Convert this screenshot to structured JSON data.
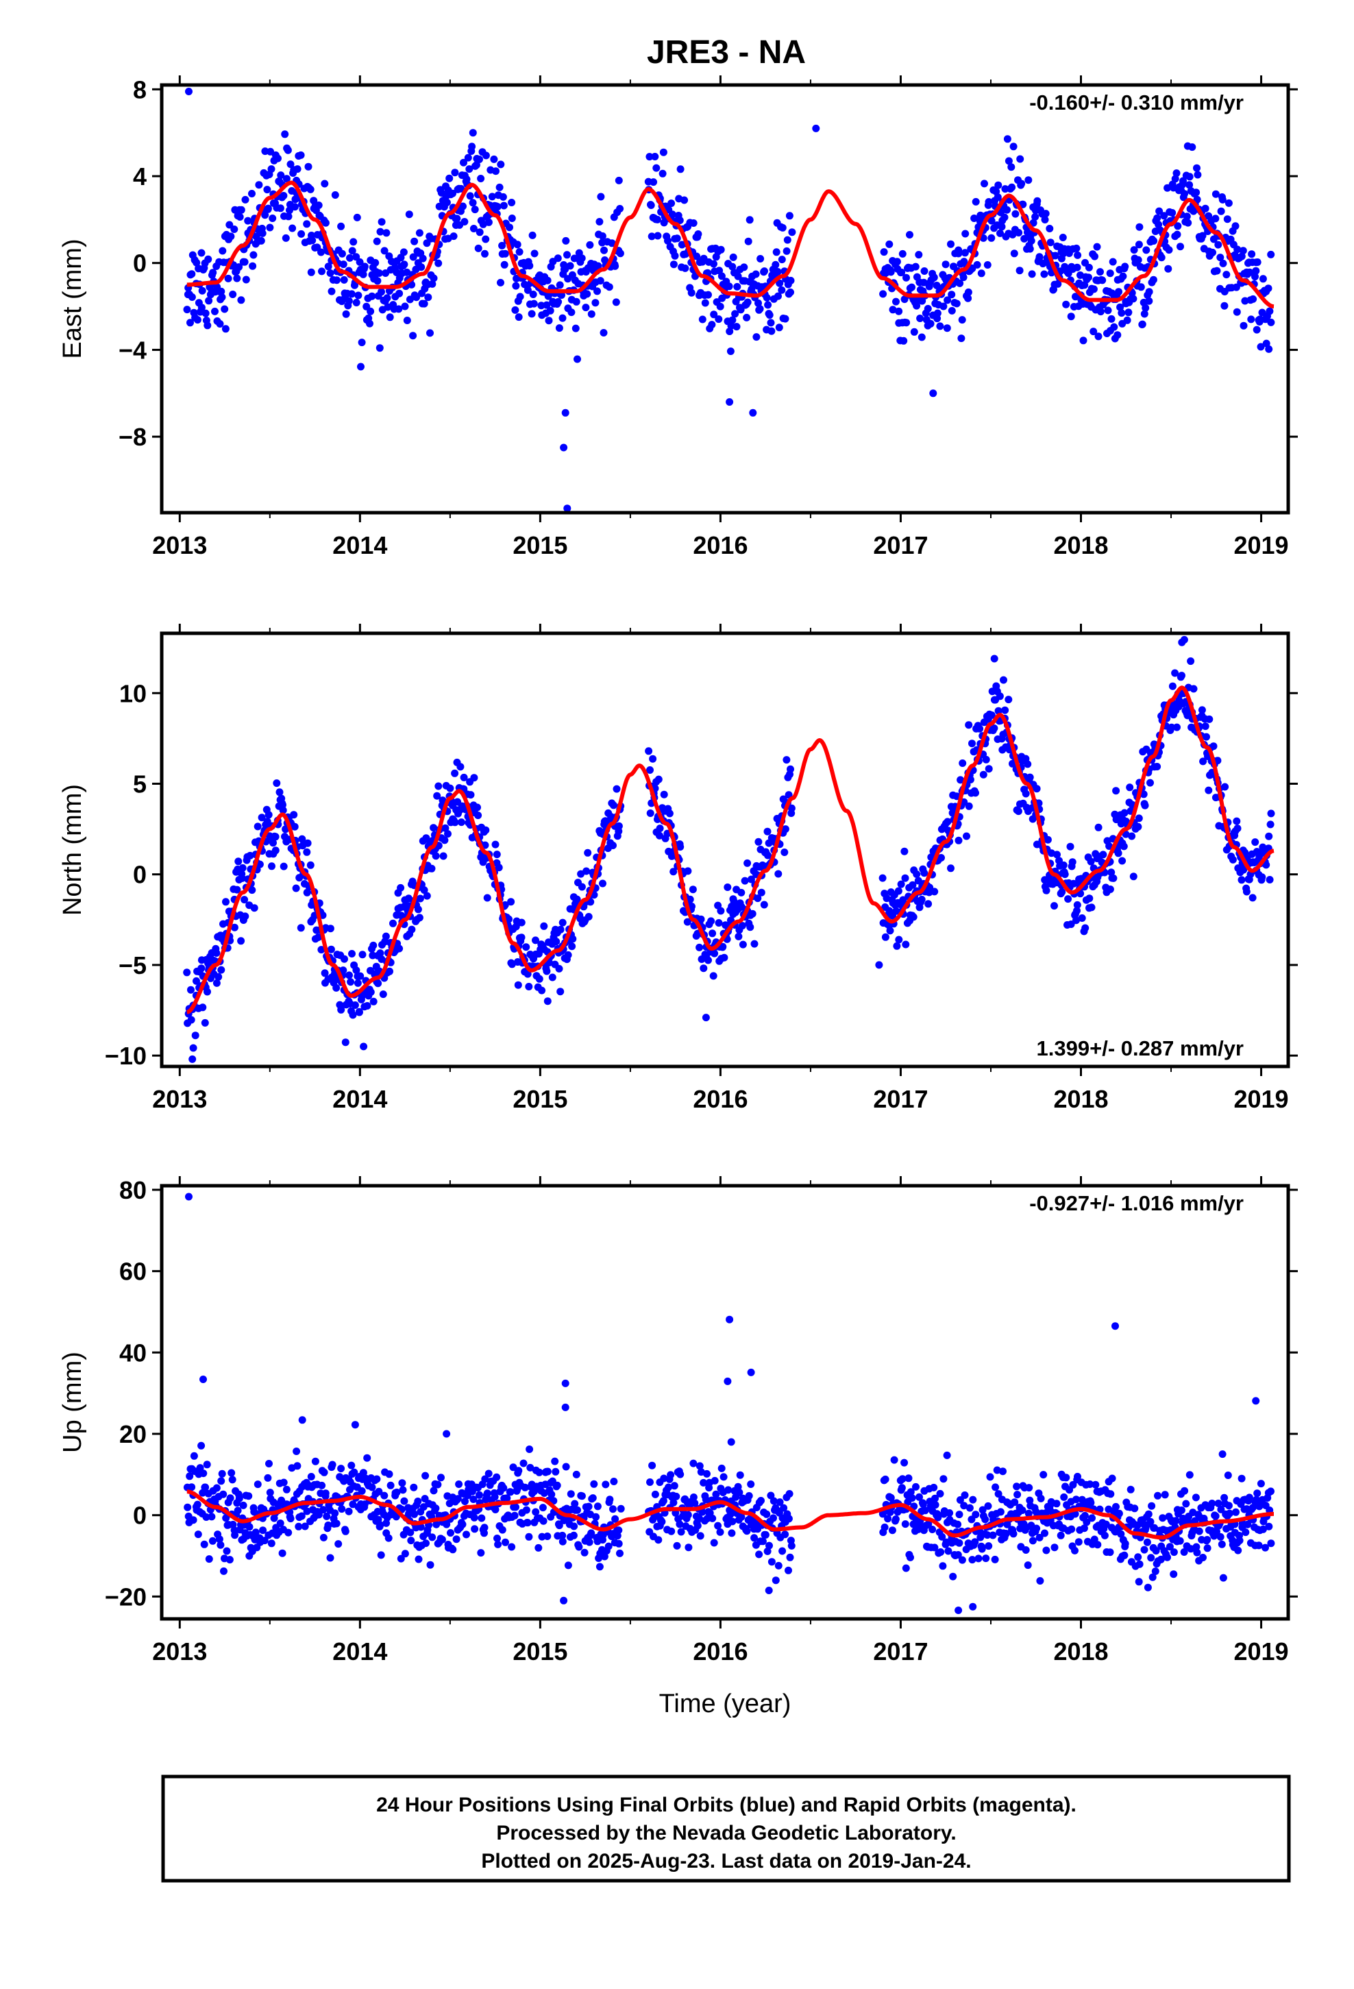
{
  "figure_title": "JRE3 - NA",
  "caption_lines": [
    "24 Hour Positions Using Final Orbits (blue) and Rapid Orbits (magenta).",
    "Processed by the Nevada Geodetic Laboratory.",
    "Plotted on 2025-Aug-23. Last data on 2019-Jan-24."
  ],
  "colors": {
    "points": "#0000ff",
    "fit": "#ff0000",
    "frame": "#000000"
  },
  "chart_data": [
    {
      "type": "scatter",
      "ylabel": "East (mm)",
      "xlabel": "",
      "xlim": [
        2012.9,
        2019.15
      ],
      "ylim": [
        -11.5,
        8.2
      ],
      "xticks": [
        2013,
        2014,
        2015,
        2016,
        2017,
        2018,
        2019
      ],
      "xtick_labels": [
        "2013",
        "2014",
        "2015",
        "2016",
        "2017",
        "2018",
        "2019"
      ],
      "yticks": [
        -8,
        -4,
        0,
        4,
        8
      ],
      "ytick_labels": [
        "−8",
        "−4",
        "0",
        "4",
        "8"
      ],
      "rate_text": "-0.160+/- 0.310 mm/yr",
      "rate_position": "top-right",
      "fit_curve": {
        "x": [
          2013.04,
          2013.2,
          2013.35,
          2013.5,
          2013.62,
          2013.75,
          2013.9,
          2014.05,
          2014.2,
          2014.35,
          2014.5,
          2014.62,
          2014.75,
          2014.9,
          2015.05,
          2015.2,
          2015.35,
          2015.5,
          2015.6,
          2015.75,
          2015.9,
          2016.05,
          2016.2,
          2016.35,
          2016.5,
          2016.6,
          2016.75,
          2016.9,
          2017.05,
          2017.2,
          2017.35,
          2017.5,
          2017.6,
          2017.75,
          2017.9,
          2018.05,
          2018.2,
          2018.35,
          2018.5,
          2018.6,
          2018.75,
          2018.9,
          2019.07
        ],
        "y": [
          -1.0,
          -0.9,
          0.8,
          3.0,
          3.7,
          2.0,
          -0.4,
          -1.1,
          -1.1,
          -0.5,
          2.3,
          3.6,
          2.2,
          -0.6,
          -1.3,
          -1.3,
          -0.3,
          2.1,
          3.4,
          1.8,
          -0.6,
          -1.4,
          -1.5,
          -0.6,
          2.0,
          3.3,
          1.8,
          -0.7,
          -1.5,
          -1.5,
          -0.3,
          2.2,
          3.1,
          1.5,
          -0.8,
          -1.7,
          -1.7,
          -0.6,
          1.8,
          2.9,
          1.4,
          -0.8,
          -2.0
        ]
      },
      "segments": [
        {
          "x0": 2013.04,
          "x1": 2015.45,
          "fit": true
        },
        {
          "x0": 2015.6,
          "x1": 2016.4,
          "fit": true
        },
        {
          "x0": 2016.9,
          "x1": 2019.06,
          "fit": true
        }
      ],
      "scatter": {
        "noise": 1.1,
        "approx_points": 1350
      },
      "outliers": [
        {
          "x": 2013.05,
          "y": 7.9
        },
        {
          "x": 2015.13,
          "y": -8.5
        },
        {
          "x": 2015.14,
          "y": -6.9
        },
        {
          "x": 2015.15,
          "y": -11.3
        },
        {
          "x": 2016.18,
          "y": -6.9
        },
        {
          "x": 2016.05,
          "y": -6.4
        },
        {
          "x": 2017.18,
          "y": -6.0
        },
        {
          "x": 2016.53,
          "y": 6.2
        }
      ]
    },
    {
      "type": "scatter",
      "ylabel": "North (mm)",
      "xlabel": "",
      "xlim": [
        2012.9,
        2019.15
      ],
      "ylim": [
        -10.6,
        13.3
      ],
      "xticks": [
        2013,
        2014,
        2015,
        2016,
        2017,
        2018,
        2019
      ],
      "xtick_labels": [
        "2013",
        "2014",
        "2015",
        "2016",
        "2017",
        "2018",
        "2019"
      ],
      "yticks": [
        -10,
        -5,
        0,
        5,
        10
      ],
      "ytick_labels": [
        "−10",
        "−5",
        "0",
        "5",
        "10"
      ],
      "rate_text": "1.399+/- 0.287 mm/yr",
      "rate_position": "bottom-right",
      "fit_curve": {
        "x": [
          2013.04,
          2013.2,
          2013.35,
          2013.5,
          2013.57,
          2013.7,
          2013.85,
          2013.95,
          2014.1,
          2014.25,
          2014.4,
          2014.5,
          2014.55,
          2014.7,
          2014.85,
          2014.95,
          2015.1,
          2015.25,
          2015.4,
          2015.5,
          2015.55,
          2015.7,
          2015.85,
          2015.95,
          2016.1,
          2016.25,
          2016.4,
          2016.5,
          2016.55,
          2016.7,
          2016.85,
          2016.95,
          2017.1,
          2017.25,
          2017.4,
          2017.5,
          2017.55,
          2017.7,
          2017.85,
          2017.95,
          2018.1,
          2018.25,
          2018.4,
          2018.5,
          2018.56,
          2018.7,
          2018.85,
          2018.95,
          2019.07
        ],
        "y": [
          -7.6,
          -5.0,
          -1.0,
          2.5,
          3.3,
          0.0,
          -5.0,
          -6.7,
          -5.7,
          -2.5,
          1.5,
          4.2,
          4.6,
          1.2,
          -3.8,
          -5.3,
          -4.2,
          -1.4,
          2.8,
          5.5,
          6.0,
          2.8,
          -2.5,
          -4.1,
          -2.6,
          0.2,
          4.2,
          6.9,
          7.4,
          3.5,
          -1.6,
          -2.6,
          -1.0,
          1.8,
          6.0,
          8.3,
          8.8,
          5.0,
          0.0,
          -1.0,
          0.2,
          2.5,
          6.5,
          9.6,
          10.3,
          7.0,
          1.5,
          0.2,
          1.3
        ]
      },
      "segments": [
        {
          "x0": 2013.04,
          "x1": 2015.45,
          "fit": true
        },
        {
          "x0": 2015.6,
          "x1": 2016.4,
          "fit": true
        },
        {
          "x0": 2016.9,
          "x1": 2019.06,
          "fit": true
        }
      ],
      "scatter": {
        "noise": 1.0,
        "approx_points": 1350
      },
      "outliers": [
        {
          "x": 2013.07,
          "y": -10.2
        },
        {
          "x": 2014.02,
          "y": -9.5
        },
        {
          "x": 2018.56,
          "y": 12.8
        },
        {
          "x": 2017.52,
          "y": 11.9
        },
        {
          "x": 2016.88,
          "y": -5.0
        },
        {
          "x": 2015.92,
          "y": -7.9
        }
      ]
    },
    {
      "type": "scatter",
      "ylabel": "Up (mm)",
      "xlabel": "Time (year)",
      "xlim": [
        2012.9,
        2019.15
      ],
      "ylim": [
        -25.5,
        81.0
      ],
      "xticks": [
        2013,
        2014,
        2015,
        2016,
        2017,
        2018,
        2019
      ],
      "xtick_labels": [
        "2013",
        "2014",
        "2015",
        "2016",
        "2017",
        "2018",
        "2019"
      ],
      "yticks": [
        -20,
        0,
        20,
        40,
        60,
        80
      ],
      "ytick_labels": [
        "−20",
        "0",
        "20",
        "40",
        "60",
        "80"
      ],
      "rate_text": "-0.927+/- 1.016 mm/yr",
      "rate_position": "top-right",
      "fit_curve": {
        "x": [
          2013.04,
          2013.2,
          2013.35,
          2013.5,
          2013.7,
          2013.85,
          2014.0,
          2014.15,
          2014.3,
          2014.45,
          2014.6,
          2014.8,
          2015.0,
          2015.15,
          2015.35,
          2015.5,
          2015.7,
          2015.85,
          2016.0,
          2016.15,
          2016.3,
          2016.45,
          2016.6,
          2016.8,
          2017.0,
          2017.15,
          2017.3,
          2017.45,
          2017.6,
          2017.8,
          2018.0,
          2018.15,
          2018.3,
          2018.45,
          2018.6,
          2018.8,
          2019.07
        ],
        "y": [
          5.8,
          2.0,
          -1.5,
          0.5,
          3.0,
          3.5,
          4.5,
          2.5,
          -2.0,
          -1.0,
          2.0,
          3.0,
          4.0,
          0.0,
          -3.5,
          -1.0,
          1.5,
          1.5,
          3.2,
          0.5,
          -3.5,
          -3.0,
          0.0,
          0.5,
          2.5,
          -1.0,
          -5.0,
          -3.0,
          -1.0,
          -0.5,
          1.5,
          0.0,
          -4.5,
          -5.5,
          -2.5,
          -1.5,
          0.3
        ]
      },
      "segments": [
        {
          "x0": 2013.04,
          "x1": 2015.45,
          "fit": true
        },
        {
          "x0": 2015.6,
          "x1": 2016.4,
          "fit": true
        },
        {
          "x0": 2016.9,
          "x1": 2019.06,
          "fit": true
        }
      ],
      "scatter": {
        "noise": 5.0,
        "approx_points": 1350
      },
      "outliers": [
        {
          "x": 2013.05,
          "y": 78.3
        },
        {
          "x": 2013.13,
          "y": 33.4
        },
        {
          "x": 2013.68,
          "y": 23.4
        },
        {
          "x": 2015.14,
          "y": 32.4
        },
        {
          "x": 2015.14,
          "y": 26.5
        },
        {
          "x": 2015.13,
          "y": -21.0
        },
        {
          "x": 2016.05,
          "y": 48.1
        },
        {
          "x": 2016.04,
          "y": 32.9
        },
        {
          "x": 2016.17,
          "y": 35.1
        },
        {
          "x": 2016.06,
          "y": 18.0
        },
        {
          "x": 2018.19,
          "y": 46.5
        },
        {
          "x": 2018.97,
          "y": 28.1
        },
        {
          "x": 2017.32,
          "y": -23.4
        },
        {
          "x": 2017.4,
          "y": -22.5
        },
        {
          "x": 2014.48,
          "y": 20.0
        }
      ]
    }
  ]
}
